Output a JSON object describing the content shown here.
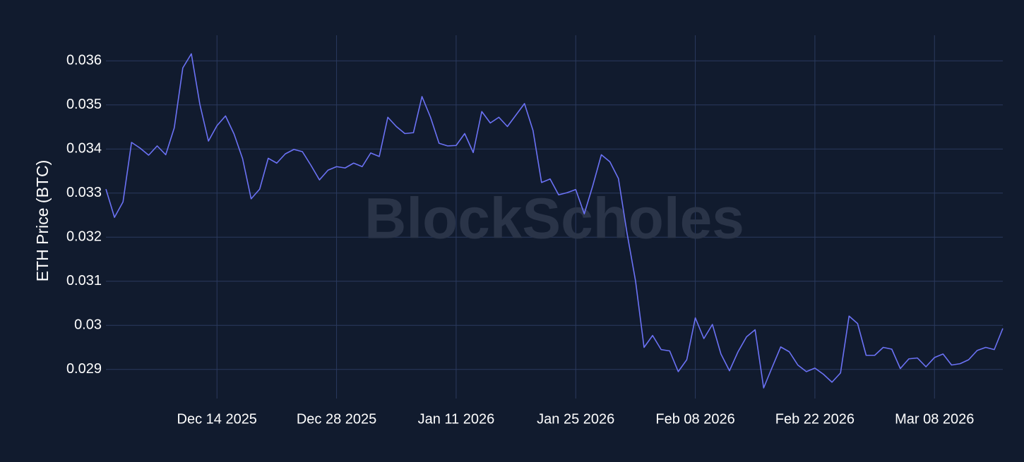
{
  "chart_data": {
    "type": "line",
    "y_axis_label": "ETH Price (BTC)",
    "watermark": "BlockScholes",
    "x": [
      "2025-12-01",
      "2025-12-02",
      "2025-12-03",
      "2025-12-04",
      "2025-12-05",
      "2025-12-06",
      "2025-12-07",
      "2025-12-08",
      "2025-12-09",
      "2025-12-10",
      "2025-12-11",
      "2025-12-12",
      "2025-12-13",
      "2025-12-14",
      "2025-12-15",
      "2025-12-16",
      "2025-12-17",
      "2025-12-18",
      "2025-12-19",
      "2025-12-20",
      "2025-12-21",
      "2025-12-22",
      "2025-12-23",
      "2025-12-24",
      "2025-12-25",
      "2025-12-26",
      "2025-12-27",
      "2025-12-28",
      "2025-12-29",
      "2025-12-30",
      "2025-12-31",
      "2026-01-01",
      "2026-01-02",
      "2026-01-03",
      "2026-01-04",
      "2026-01-05",
      "2026-01-06",
      "2026-01-07",
      "2026-01-08",
      "2026-01-09",
      "2026-01-10",
      "2026-01-11",
      "2026-01-12",
      "2026-01-13",
      "2026-01-14",
      "2026-01-15",
      "2026-01-16",
      "2026-01-17",
      "2026-01-18",
      "2026-01-19",
      "2026-01-20",
      "2026-01-21",
      "2026-01-22",
      "2026-01-23",
      "2026-01-24",
      "2026-01-25",
      "2026-01-26",
      "2026-01-27",
      "2026-01-28",
      "2026-01-29",
      "2026-01-30",
      "2026-01-31",
      "2026-02-01",
      "2026-02-02",
      "2026-02-03",
      "2026-02-04",
      "2026-02-05",
      "2026-02-06",
      "2026-02-07",
      "2026-02-08",
      "2026-02-09",
      "2026-02-10",
      "2026-02-11",
      "2026-02-12",
      "2026-02-13",
      "2026-02-14",
      "2026-02-15",
      "2026-02-16",
      "2026-02-17",
      "2026-02-18",
      "2026-02-19",
      "2026-02-20",
      "2026-02-21",
      "2026-02-22",
      "2026-02-23",
      "2026-02-24",
      "2026-02-25",
      "2026-02-26",
      "2026-02-27",
      "2026-02-28",
      "2026-03-01",
      "2026-03-02",
      "2026-03-03",
      "2026-03-04",
      "2026-03-05",
      "2026-03-06",
      "2026-03-07",
      "2026-03-08",
      "2026-03-09",
      "2026-03-10",
      "2026-03-11",
      "2026-03-12",
      "2026-03-13",
      "2026-03-14",
      "2026-03-15",
      "2026-03-16"
    ],
    "series": [
      {
        "color": "#6b72f5",
        "values": [
          0.03309,
          0.03245,
          0.0328,
          0.03415,
          0.03402,
          0.03386,
          0.03407,
          0.03387,
          0.03448,
          0.03584,
          0.03616,
          0.03501,
          0.03418,
          0.03453,
          0.03475,
          0.03434,
          0.03378,
          0.03287,
          0.03309,
          0.03379,
          0.03368,
          0.03389,
          0.03399,
          0.03394,
          0.03363,
          0.0333,
          0.03352,
          0.0336,
          0.03357,
          0.03368,
          0.0336,
          0.03391,
          0.03383,
          0.03472,
          0.03451,
          0.03435,
          0.03437,
          0.03519,
          0.03472,
          0.03413,
          0.03407,
          0.03408,
          0.03435,
          0.03392,
          0.03485,
          0.03459,
          0.03472,
          0.03451,
          0.03477,
          0.03503,
          0.03442,
          0.03324,
          0.03332,
          0.03296,
          0.03301,
          0.03308,
          0.03253,
          0.03317,
          0.03387,
          0.03371,
          0.03333,
          0.0321,
          0.03101,
          0.0295,
          0.02977,
          0.02945,
          0.02942,
          0.02895,
          0.02922,
          0.03017,
          0.0297,
          0.03002,
          0.02935,
          0.02897,
          0.0294,
          0.02974,
          0.0299,
          0.02858,
          0.02905,
          0.02951,
          0.0294,
          0.0291,
          0.02895,
          0.02903,
          0.02889,
          0.02871,
          0.02892,
          0.03021,
          0.03004,
          0.02932,
          0.02932,
          0.0295,
          0.02946,
          0.02902,
          0.02924,
          0.02926,
          0.02906,
          0.02927,
          0.02935,
          0.0291,
          0.02913,
          0.02922,
          0.02943,
          0.0295,
          0.02945,
          0.02993
        ]
      }
    ],
    "xlim": [
      "2025-12-01",
      "2026-03-16"
    ],
    "xticks": [
      {
        "value": "2025-12-14",
        "label": "Dec 14 2025"
      },
      {
        "value": "2025-12-28",
        "label": "Dec 28 2025"
      },
      {
        "value": "2026-01-11",
        "label": "Jan 11 2026"
      },
      {
        "value": "2026-01-25",
        "label": "Jan 25 2026"
      },
      {
        "value": "2026-02-08",
        "label": "Feb 08 2026"
      },
      {
        "value": "2026-02-22",
        "label": "Feb 22 2026"
      },
      {
        "value": "2026-03-08",
        "label": "Mar 08 2026"
      }
    ],
    "ylim": [
      0.02834,
      0.03658
    ],
    "yticks": [
      0.029,
      0.03,
      0.031,
      0.032,
      0.033,
      0.034,
      0.035,
      0.036
    ],
    "grid": true
  }
}
